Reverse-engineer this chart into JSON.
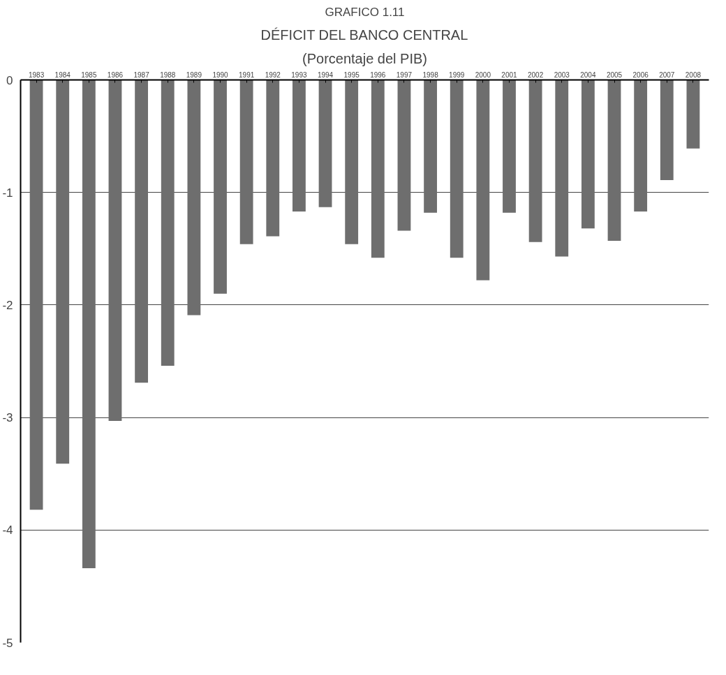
{
  "chart_data": {
    "type": "bar",
    "title": "GRAFICO 1.11",
    "subtitle": "DÉFICIT DEL BANCO CENTRAL",
    "annotations": [
      "(Porcentaje del PIB)"
    ],
    "categories": [
      "1983",
      "1984",
      "1985",
      "1986",
      "1987",
      "1988",
      "1989",
      "1990",
      "1991",
      "1992",
      "1993",
      "1994",
      "1995",
      "1996",
      "1997",
      "1998",
      "1999",
      "2000",
      "2001",
      "2002",
      "2003",
      "2004",
      "2005",
      "2006",
      "2007",
      "2008"
    ],
    "values": [
      -3.82,
      -3.41,
      -4.34,
      -3.03,
      -2.69,
      -2.54,
      -2.09,
      -1.9,
      -1.46,
      -1.39,
      -1.17,
      -1.13,
      -1.46,
      -1.58,
      -1.34,
      -1.18,
      -1.58,
      -1.78,
      -1.18,
      -1.44,
      -1.57,
      -1.32,
      -1.43,
      -1.17,
      -0.89,
      -0.61
    ],
    "color": "#6e6e6e",
    "ylim": [
      -5,
      0
    ],
    "yticks": [
      -5,
      -4,
      -3,
      -2,
      -1,
      0
    ],
    "grid": "y"
  }
}
